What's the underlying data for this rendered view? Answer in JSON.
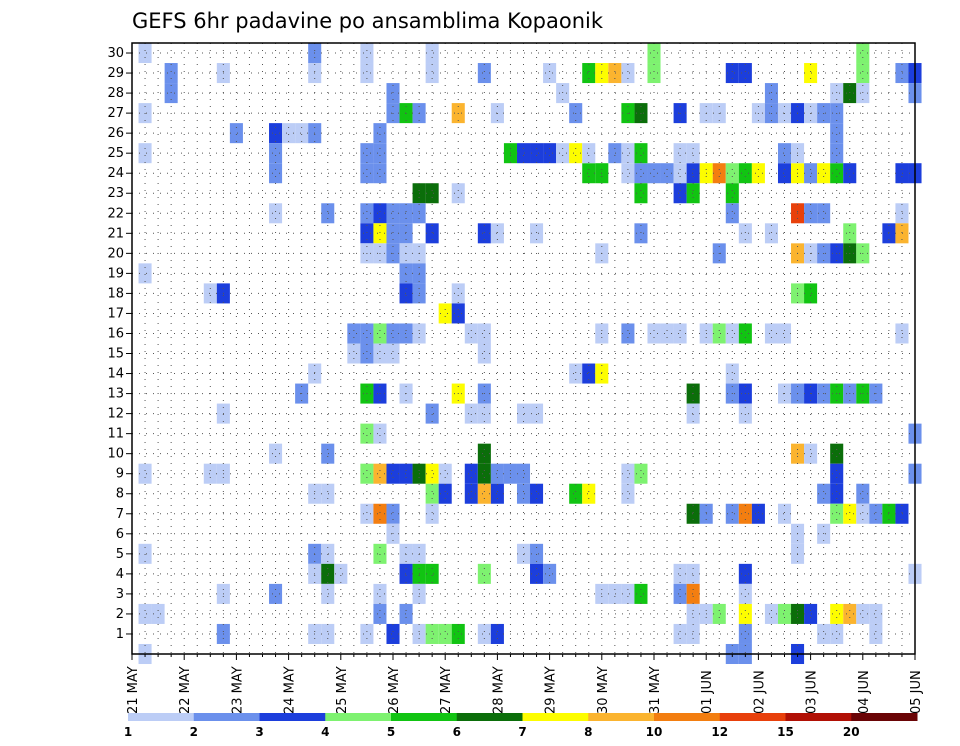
{
  "chart_data": {
    "type": "heatmap",
    "title": "GEFS 6hr padavine po ansamblima Kopaonik",
    "xlabel": "",
    "ylabel": "",
    "x_tick_labels": [
      "21 MAY",
      "22 MAY",
      "23 MAY",
      "24 MAY",
      "25 MAY",
      "26 MAY",
      "27 MAY",
      "28 MAY",
      "29 MAY",
      "30 MAY",
      "31 MAY",
      "01 JUN",
      "02 JUN",
      "03 JUN",
      "04 JUN",
      "05 JUN"
    ],
    "x_steps_per_day": 4,
    "x_range_steps": [
      0,
      60
    ],
    "y_tick_labels": [
      "1",
      "2",
      "3",
      "4",
      "5",
      "6",
      "7",
      "8",
      "9",
      "10",
      "11",
      "12",
      "13",
      "14",
      "15",
      "16",
      "17",
      "18",
      "19",
      "20",
      "21",
      "22",
      "23",
      "24",
      "25",
      "26",
      "27",
      "28",
      "29",
      "30"
    ],
    "y_range": [
      1,
      30
    ],
    "grid": true,
    "colorbar": {
      "labels": [
        "1",
        "2",
        "3",
        "4",
        "5",
        "6",
        "7",
        "8",
        "10",
        "12",
        "15",
        "20"
      ],
      "colors": [
        "#bccdf6",
        "#6b90ec",
        "#1c3edc",
        "#7ef270",
        "#11c412",
        "#0b6e0a",
        "#fdfd00",
        "#fbb42f",
        "#f37e10",
        "#e8400b",
        "#b11005",
        "#6a0406"
      ],
      "placement": "bottom"
    },
    "cells": [
      [
        1,
        30,
        0
      ],
      [
        3,
        29,
        1
      ],
      [
        3,
        28,
        1
      ],
      [
        7,
        29,
        0
      ],
      [
        14,
        30,
        1
      ],
      [
        14,
        29,
        0
      ],
      [
        18,
        29,
        0
      ],
      [
        18,
        30,
        0
      ],
      [
        23,
        29,
        0
      ],
      [
        23,
        30,
        0
      ],
      [
        27,
        29,
        1
      ],
      [
        32,
        29,
        0
      ],
      [
        35,
        29,
        4
      ],
      [
        36,
        29,
        6
      ],
      [
        37,
        29,
        7
      ],
      [
        38,
        29,
        0
      ],
      [
        40,
        29,
        3
      ],
      [
        40,
        30,
        3
      ],
      [
        46,
        29,
        2
      ],
      [
        47,
        29,
        2
      ],
      [
        52,
        29,
        6
      ],
      [
        56,
        29,
        3
      ],
      [
        56,
        30,
        3
      ],
      [
        59,
        29,
        1
      ],
      [
        60,
        29,
        2
      ],
      [
        60,
        28,
        1
      ],
      [
        1,
        27,
        0
      ],
      [
        13,
        26,
        0
      ],
      [
        18,
        25,
        1
      ],
      [
        18,
        24,
        1
      ],
      [
        19,
        25,
        1
      ],
      [
        19,
        24,
        1
      ],
      [
        19,
        26,
        1
      ],
      [
        20,
        27,
        1
      ],
      [
        20,
        28,
        1
      ],
      [
        21,
        27,
        4
      ],
      [
        22,
        27,
        1
      ],
      [
        25,
        27,
        7
      ],
      [
        28,
        27,
        0
      ],
      [
        32,
        25,
        2
      ],
      [
        31,
        25,
        2
      ],
      [
        30,
        25,
        2
      ],
      [
        33,
        25,
        0
      ],
      [
        34,
        25,
        6
      ],
      [
        29,
        25,
        4
      ],
      [
        36,
        24,
        4
      ],
      [
        35,
        24,
        4
      ],
      [
        38,
        24,
        0
      ],
      [
        39,
        24,
        1
      ],
      [
        40,
        24,
        1
      ],
      [
        41,
        24,
        1
      ],
      [
        42,
        24,
        0
      ],
      [
        43,
        24,
        2
      ],
      [
        44,
        24,
        6
      ],
      [
        45,
        24,
        8
      ],
      [
        46,
        24,
        3
      ],
      [
        47,
        24,
        4
      ],
      [
        48,
        24,
        6
      ],
      [
        50,
        24,
        2
      ],
      [
        51,
        24,
        6
      ],
      [
        52,
        24,
        1
      ],
      [
        53,
        24,
        6
      ],
      [
        54,
        24,
        4
      ],
      [
        55,
        24,
        2
      ],
      [
        59,
        24,
        2
      ],
      [
        60,
        24,
        2
      ],
      [
        1,
        25,
        0
      ],
      [
        8,
        26,
        1
      ],
      [
        11,
        26,
        2
      ],
      [
        12,
        26,
        0
      ],
      [
        14,
        26,
        1
      ],
      [
        11,
        25,
        1
      ],
      [
        11,
        24,
        1
      ],
      [
        35,
        25,
        0
      ],
      [
        37,
        25,
        1
      ],
      [
        39,
        25,
        4
      ],
      [
        38,
        25,
        0
      ],
      [
        42,
        25,
        0
      ],
      [
        43,
        25,
        0
      ],
      [
        50,
        25,
        1
      ],
      [
        51,
        25,
        0
      ],
      [
        54,
        25,
        1
      ],
      [
        54,
        26,
        1
      ],
      [
        54,
        27,
        1
      ],
      [
        48,
        27,
        0
      ],
      [
        49,
        27,
        1
      ],
      [
        50,
        27,
        0
      ],
      [
        51,
        27,
        2
      ],
      [
        52,
        27,
        0
      ],
      [
        53,
        27,
        1
      ],
      [
        44,
        27,
        0
      ],
      [
        45,
        27,
        0
      ],
      [
        42,
        27,
        2
      ],
      [
        39,
        27,
        5
      ],
      [
        38,
        27,
        4
      ],
      [
        34,
        27,
        1
      ],
      [
        33,
        28,
        0
      ],
      [
        49,
        28,
        1
      ],
      [
        54,
        28,
        0
      ],
      [
        55,
        28,
        5
      ],
      [
        56,
        28,
        0
      ],
      [
        22,
        23,
        5
      ],
      [
        23,
        23,
        5
      ],
      [
        25,
        23,
        0
      ],
      [
        39,
        23,
        4
      ],
      [
        42,
        23,
        2
      ],
      [
        43,
        23,
        4
      ],
      [
        46,
        23,
        4
      ],
      [
        11,
        22,
        0
      ],
      [
        15,
        22,
        1
      ],
      [
        18,
        22,
        1
      ],
      [
        19,
        22,
        2
      ],
      [
        20,
        22,
        1
      ],
      [
        21,
        22,
        1
      ],
      [
        22,
        22,
        1
      ],
      [
        46,
        22,
        1
      ],
      [
        51,
        22,
        9
      ],
      [
        52,
        22,
        1
      ],
      [
        53,
        22,
        1
      ],
      [
        59,
        22,
        0
      ],
      [
        18,
        21,
        2
      ],
      [
        19,
        21,
        6
      ],
      [
        20,
        21,
        1
      ],
      [
        21,
        21,
        1
      ],
      [
        23,
        21,
        2
      ],
      [
        27,
        21,
        2
      ],
      [
        28,
        21,
        0
      ],
      [
        31,
        21,
        0
      ],
      [
        39,
        21,
        1
      ],
      [
        47,
        21,
        0
      ],
      [
        49,
        21,
        0
      ],
      [
        55,
        21,
        3
      ],
      [
        58,
        21,
        2
      ],
      [
        59,
        21,
        7
      ],
      [
        18,
        20,
        0
      ],
      [
        19,
        20,
        0
      ],
      [
        20,
        20,
        1
      ],
      [
        21,
        20,
        0
      ],
      [
        22,
        20,
        0
      ],
      [
        36,
        20,
        0
      ],
      [
        45,
        20,
        1
      ],
      [
        51,
        20,
        7
      ],
      [
        52,
        20,
        0
      ],
      [
        53,
        20,
        1
      ],
      [
        54,
        20,
        2
      ],
      [
        55,
        20,
        5
      ],
      [
        56,
        20,
        3
      ],
      [
        1,
        19,
        0
      ],
      [
        21,
        19,
        1
      ],
      [
        22,
        19,
        1
      ],
      [
        6,
        18,
        0
      ],
      [
        7,
        18,
        2
      ],
      [
        21,
        18,
        2
      ],
      [
        22,
        18,
        1
      ],
      [
        25,
        18,
        0
      ],
      [
        51,
        18,
        3
      ],
      [
        52,
        18,
        4
      ],
      [
        24,
        17,
        6
      ],
      [
        25,
        17,
        2
      ],
      [
        26,
        16,
        0
      ],
      [
        27,
        16,
        0
      ],
      [
        27,
        15,
        0
      ],
      [
        40,
        16,
        0
      ],
      [
        38,
        16,
        1
      ],
      [
        36,
        16,
        0
      ],
      [
        41,
        16,
        0
      ],
      [
        42,
        16,
        0
      ],
      [
        44,
        16,
        0
      ],
      [
        45,
        16,
        3
      ],
      [
        46,
        16,
        0
      ],
      [
        47,
        16,
        4
      ],
      [
        49,
        16,
        0
      ],
      [
        50,
        16,
        0
      ],
      [
        59,
        16,
        0
      ],
      [
        17,
        16,
        1
      ],
      [
        18,
        16,
        1
      ],
      [
        19,
        16,
        3
      ],
      [
        20,
        16,
        1
      ],
      [
        21,
        16,
        1
      ],
      [
        22,
        16,
        0
      ],
      [
        17,
        15,
        0
      ],
      [
        18,
        15,
        1
      ],
      [
        19,
        15,
        0
      ],
      [
        20,
        15,
        0
      ],
      [
        14,
        14,
        0
      ],
      [
        34,
        14,
        0
      ],
      [
        35,
        14,
        2
      ],
      [
        36,
        14,
        6
      ],
      [
        46,
        14,
        0
      ],
      [
        18,
        13,
        4
      ],
      [
        19,
        13,
        2
      ],
      [
        21,
        13,
        0
      ],
      [
        25,
        13,
        6
      ],
      [
        27,
        13,
        1
      ],
      [
        13,
        13,
        1
      ],
      [
        43,
        13,
        5
      ],
      [
        46,
        13,
        1
      ],
      [
        47,
        13,
        2
      ],
      [
        50,
        13,
        0
      ],
      [
        51,
        13,
        1
      ],
      [
        52,
        13,
        2
      ],
      [
        53,
        13,
        1
      ],
      [
        54,
        13,
        4
      ],
      [
        55,
        13,
        1
      ],
      [
        56,
        13,
        4
      ],
      [
        57,
        13,
        1
      ],
      [
        7,
        12,
        0
      ],
      [
        23,
        12,
        1
      ],
      [
        26,
        12,
        0
      ],
      [
        27,
        12,
        0
      ],
      [
        30,
        12,
        0
      ],
      [
        31,
        12,
        0
      ],
      [
        43,
        12,
        0
      ],
      [
        47,
        12,
        0
      ],
      [
        18,
        11,
        3
      ],
      [
        19,
        11,
        0
      ],
      [
        60,
        11,
        1
      ],
      [
        11,
        10,
        0
      ],
      [
        15,
        10,
        1
      ],
      [
        27,
        10,
        5
      ],
      [
        51,
        10,
        7
      ],
      [
        52,
        10,
        0
      ],
      [
        54,
        10,
        5
      ],
      [
        1,
        9,
        0
      ],
      [
        6,
        9,
        0
      ],
      [
        7,
        9,
        0
      ],
      [
        18,
        9,
        3
      ],
      [
        19,
        9,
        7
      ],
      [
        20,
        9,
        2
      ],
      [
        21,
        9,
        2
      ],
      [
        22,
        9,
        5
      ],
      [
        23,
        9,
        6
      ],
      [
        24,
        9,
        0
      ],
      [
        26,
        9,
        2
      ],
      [
        27,
        9,
        5
      ],
      [
        28,
        9,
        1
      ],
      [
        29,
        9,
        1
      ],
      [
        30,
        9,
        1
      ],
      [
        38,
        9,
        0
      ],
      [
        39,
        9,
        3
      ],
      [
        54,
        9,
        2
      ],
      [
        60,
        9,
        1
      ],
      [
        14,
        8,
        0
      ],
      [
        15,
        8,
        0
      ],
      [
        23,
        8,
        3
      ],
      [
        24,
        8,
        2
      ],
      [
        26,
        8,
        2
      ],
      [
        27,
        8,
        7
      ],
      [
        28,
        8,
        2
      ],
      [
        30,
        8,
        1
      ],
      [
        31,
        8,
        2
      ],
      [
        34,
        8,
        4
      ],
      [
        35,
        8,
        6
      ],
      [
        38,
        8,
        0
      ],
      [
        53,
        8,
        1
      ],
      [
        54,
        8,
        2
      ],
      [
        56,
        8,
        1
      ],
      [
        18,
        7,
        0
      ],
      [
        19,
        7,
        8
      ],
      [
        20,
        7,
        1
      ],
      [
        23,
        7,
        0
      ],
      [
        43,
        7,
        5
      ],
      [
        44,
        7,
        1
      ],
      [
        46,
        7,
        1
      ],
      [
        47,
        7,
        8
      ],
      [
        48,
        7,
        2
      ],
      [
        50,
        7,
        0
      ],
      [
        54,
        7,
        3
      ],
      [
        55,
        7,
        6
      ],
      [
        56,
        7,
        0
      ],
      [
        57,
        7,
        1
      ],
      [
        58,
        7,
        4
      ],
      [
        59,
        7,
        2
      ],
      [
        20,
        6,
        0
      ],
      [
        51,
        6,
        0
      ],
      [
        53,
        6,
        0
      ],
      [
        1,
        5,
        0
      ],
      [
        14,
        5,
        1
      ],
      [
        15,
        5,
        0
      ],
      [
        19,
        5,
        3
      ],
      [
        21,
        5,
        0
      ],
      [
        22,
        5,
        0
      ],
      [
        30,
        5,
        0
      ],
      [
        31,
        5,
        1
      ],
      [
        51,
        5,
        0
      ],
      [
        14,
        4,
        0
      ],
      [
        15,
        4,
        5
      ],
      [
        16,
        4,
        0
      ],
      [
        21,
        4,
        2
      ],
      [
        22,
        4,
        4
      ],
      [
        23,
        4,
        4
      ],
      [
        27,
        4,
        3
      ],
      [
        31,
        4,
        2
      ],
      [
        32,
        4,
        1
      ],
      [
        42,
        4,
        0
      ],
      [
        43,
        4,
        0
      ],
      [
        47,
        4,
        2
      ],
      [
        60,
        4,
        0
      ],
      [
        7,
        3,
        0
      ],
      [
        11,
        3,
        1
      ],
      [
        15,
        3,
        0
      ],
      [
        19,
        3,
        0
      ],
      [
        22,
        3,
        0
      ],
      [
        36,
        3,
        0
      ],
      [
        37,
        3,
        0
      ],
      [
        38,
        3,
        0
      ],
      [
        39,
        3,
        4
      ],
      [
        42,
        3,
        1
      ],
      [
        43,
        3,
        8
      ],
      [
        47,
        3,
        0
      ],
      [
        1,
        2,
        0
      ],
      [
        2,
        2,
        0
      ],
      [
        19,
        2,
        1
      ],
      [
        21,
        2,
        1
      ],
      [
        43,
        2,
        0
      ],
      [
        44,
        2,
        0
      ],
      [
        45,
        2,
        3
      ],
      [
        47,
        2,
        6
      ],
      [
        49,
        2,
        0
      ],
      [
        50,
        2,
        3
      ],
      [
        51,
        2,
        5
      ],
      [
        52,
        2,
        2
      ],
      [
        54,
        2,
        6
      ],
      [
        55,
        2,
        7
      ],
      [
        56,
        2,
        0
      ],
      [
        57,
        2,
        0
      ],
      [
        7,
        1,
        1
      ],
      [
        14,
        1,
        0
      ],
      [
        15,
        1,
        0
      ],
      [
        18,
        1,
        0
      ],
      [
        20,
        1,
        2
      ],
      [
        22,
        1,
        0
      ],
      [
        23,
        1,
        3
      ],
      [
        24,
        1,
        3
      ],
      [
        25,
        1,
        4
      ],
      [
        27,
        1,
        0
      ],
      [
        28,
        1,
        2
      ],
      [
        42,
        1,
        0
      ],
      [
        43,
        1,
        0
      ],
      [
        47,
        1,
        1
      ],
      [
        53,
        1,
        0
      ],
      [
        54,
        1,
        0
      ],
      [
        57,
        1,
        0
      ],
      [
        1,
        0,
        0
      ],
      [
        46,
        0,
        1
      ],
      [
        47,
        0,
        1
      ],
      [
        51,
        0,
        2
      ]
    ]
  }
}
